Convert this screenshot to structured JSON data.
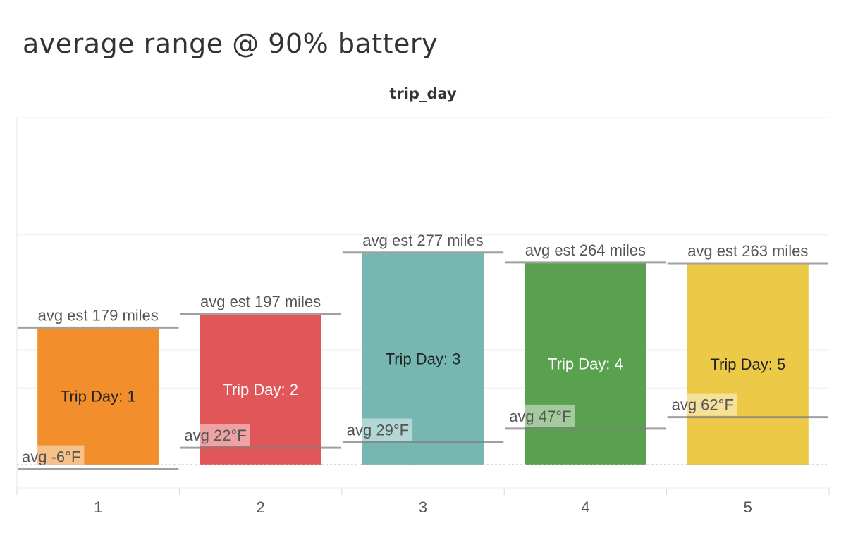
{
  "chart_data": {
    "type": "bar",
    "title": "average range @ 90% battery",
    "column_header": "trip_day",
    "categories": [
      "1",
      "2",
      "3",
      "4",
      "5"
    ],
    "bar_labels": [
      "Trip Day: 1",
      "Trip Day: 2",
      "Trip Day: 3",
      "Trip Day: 4",
      "Trip Day: 5"
    ],
    "values": [
      179,
      197,
      277,
      264,
      263
    ],
    "range_labels": [
      "avg est 179 miles",
      "avg est 197 miles",
      "avg est 277 miles",
      "avg est 264 miles",
      "avg est 263 miles"
    ],
    "temperatures_f": [
      -6,
      22,
      29,
      47,
      62
    ],
    "temperature_labels": [
      "avg -6°F",
      "avg 22°F",
      "avg 29°F",
      "avg 47°F",
      "avg 62°F"
    ],
    "colors": [
      "#F28E2B",
      "#E15759",
      "#76B7B2",
      "#59A14F",
      "#EDC948"
    ],
    "bar_label_colors": [
      "#222222",
      "#ffffff",
      "#222222",
      "#ffffff",
      "#222222"
    ],
    "y_range": [
      -7,
      300
    ],
    "grid": true,
    "legend": "none"
  }
}
